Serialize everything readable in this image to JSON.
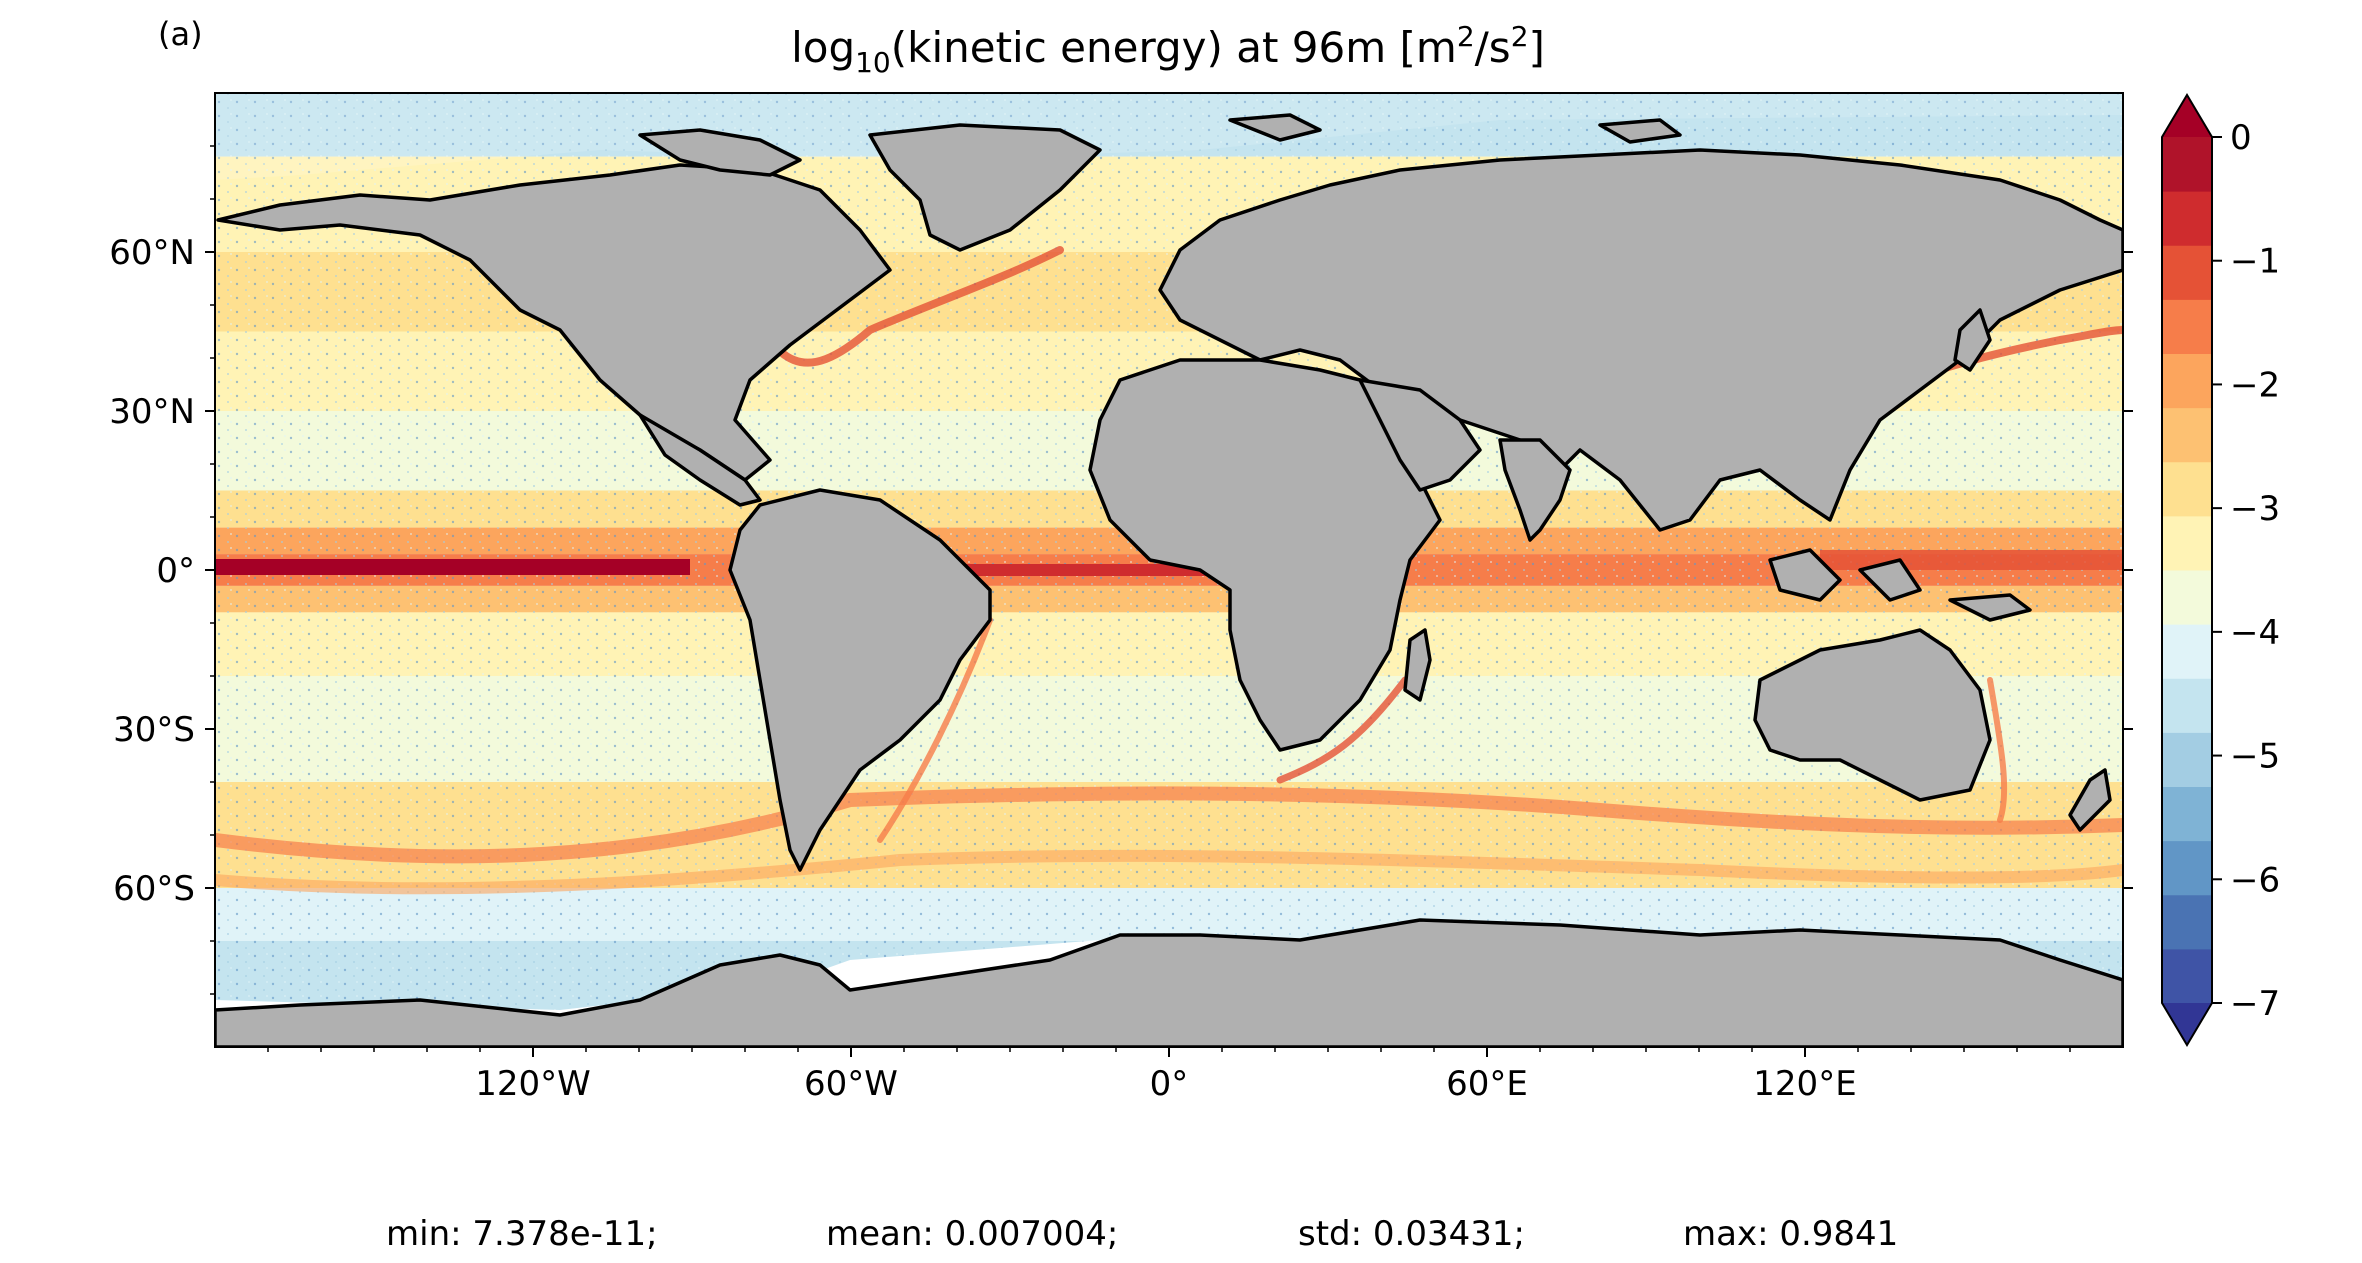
{
  "panel_label": "(a)",
  "title": {
    "prefix": "log",
    "subscript": "10",
    "middle": "(kinetic energy) at 96m [m",
    "superscript_1": "2",
    "middle_2": "/s",
    "superscript_2": "2",
    "suffix": "]"
  },
  "map": {
    "projection": "plate carree",
    "lon_range": [
      -180,
      180
    ],
    "lat_range": [
      -90,
      90
    ],
    "land_color": "#b0b0b0",
    "coastline_color": "#000000",
    "ice_color": "#ffffff",
    "lat_ticks": [
      {
        "value": 60,
        "label": "60°N"
      },
      {
        "value": 30,
        "label": "30°N"
      },
      {
        "value": 0,
        "label": "0°"
      },
      {
        "value": -30,
        "label": "30°S"
      },
      {
        "value": -60,
        "label": "60°S"
      }
    ],
    "lon_ticks": [
      {
        "value": -120,
        "label": "120°W"
      },
      {
        "value": -60,
        "label": "60°W"
      },
      {
        "value": 0,
        "label": "0°"
      },
      {
        "value": 60,
        "label": "60°E"
      },
      {
        "value": 120,
        "label": "120°E"
      }
    ]
  },
  "colorbar": {
    "colormap": "RdYlBu_r",
    "range": [
      -7,
      0
    ],
    "extend": "both",
    "tick_labels": [
      {
        "value": 0,
        "label": "0"
      },
      {
        "value": -1,
        "label": "−1"
      },
      {
        "value": -2,
        "label": "−2"
      },
      {
        "value": -3,
        "label": "−3"
      },
      {
        "value": -4,
        "label": "−4"
      },
      {
        "value": -5,
        "label": "−5"
      },
      {
        "value": -6,
        "label": "−6"
      },
      {
        "value": -7,
        "label": "−7"
      }
    ],
    "colors": [
      "#313695",
      "#3f54a6",
      "#4a73b3",
      "#6196c6",
      "#7fb3d5",
      "#a3cde3",
      "#c4e4ef",
      "#e0f3f8",
      "#f3fadb",
      "#fff3b5",
      "#fee090",
      "#fdc172",
      "#fca55d",
      "#f67d4a",
      "#e55236",
      "#cf2c2e",
      "#b0132a",
      "#a50026"
    ]
  },
  "stats": {
    "min": "min: 7.378e-11;",
    "mean": "mean: 0.007004;",
    "std": "std: 0.03431;",
    "max": "max: 0.9841"
  }
}
